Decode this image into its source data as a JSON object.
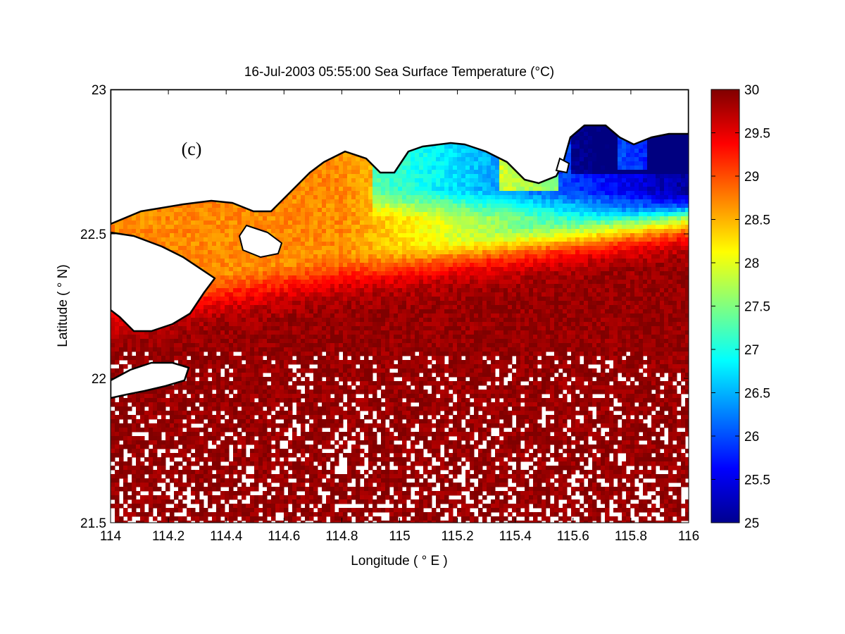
{
  "chart_data": {
    "type": "heatmap",
    "title": "16-Jul-2003 05:55:00  Sea Surface Temperature (°C)",
    "panel_label": "(c)",
    "xlabel": "Longitude ( ° E )",
    "ylabel": "Latitude ( ° N)",
    "xlim": [
      114,
      116
    ],
    "ylim": [
      21.5,
      23
    ],
    "x_ticks": [
      114,
      114.2,
      114.4,
      114.6,
      114.8,
      115,
      115.2,
      115.4,
      115.6,
      115.8,
      116
    ],
    "x_tick_labels": [
      "114",
      "114.2",
      "114.4",
      "114.6",
      "114.8",
      "115",
      "115.2",
      "115.4",
      "115.6",
      "115.8",
      "116"
    ],
    "y_ticks": [
      21.5,
      22,
      22.5,
      23
    ],
    "y_tick_labels": [
      "21.5",
      "22",
      "22.5",
      "23"
    ],
    "colorbar": {
      "clim": [
        25,
        30
      ],
      "ticks": [
        25,
        25.5,
        26,
        26.5,
        27,
        27.5,
        28,
        28.5,
        29,
        29.5,
        30
      ],
      "tick_labels": [
        "25",
        "25.5",
        "26",
        "26.5",
        "27",
        "27.5",
        "28",
        "28.5",
        "29",
        "29.5",
        "30"
      ],
      "colormap": "jet"
    },
    "grid": false
  }
}
